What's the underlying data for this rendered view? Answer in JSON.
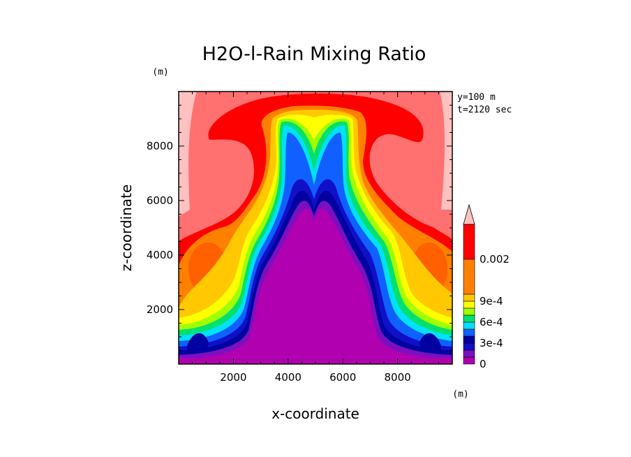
{
  "chart_data": {
    "type": "heatmap",
    "title": "H2O-l-Rain Mixing Ratio",
    "xlabel": "x-coordinate",
    "ylabel": "z-coordinate",
    "x_unit": "(m)",
    "y_unit": "(m)",
    "xlim": [
      0,
      10000
    ],
    "ylim": [
      0,
      10000
    ],
    "x_ticks": [
      2000,
      4000,
      6000,
      8000
    ],
    "y_ticks": [
      2000,
      4000,
      6000,
      8000
    ],
    "x_tick_labels": [
      "2000",
      "4000",
      "6000",
      "8000"
    ],
    "y_tick_labels": [
      "2000",
      "4000",
      "6000",
      "8000"
    ],
    "annotations": [
      "y=100 m",
      "t=2120 sec"
    ],
    "colorbar": {
      "levels": [
        0,
        0.0001,
        0.0002,
        0.0003,
        0.0004,
        0.0005,
        0.0006,
        0.0007,
        0.0008,
        0.0009,
        0.001,
        0.002
      ],
      "colors": [
        "#b000b0",
        "#7a10c0",
        "#1010c8",
        "#0000a0",
        "#1060ff",
        "#00e0ff",
        "#00e070",
        "#a0ff00",
        "#ffff00",
        "#ffc800",
        "#ff8000",
        "#ff0000",
        "#ff7070",
        "#ffc0c0"
      ],
      "labels": [
        {
          "value": "0",
          "level_index": 0
        },
        {
          "value": "3e-4",
          "level_index": 3
        },
        {
          "value": "6e-4",
          "level_index": 6
        },
        {
          "value": "9e-4",
          "level_index": 9
        },
        {
          "value": "0.002",
          "level_index": 11
        }
      ],
      "extend": "max"
    }
  }
}
